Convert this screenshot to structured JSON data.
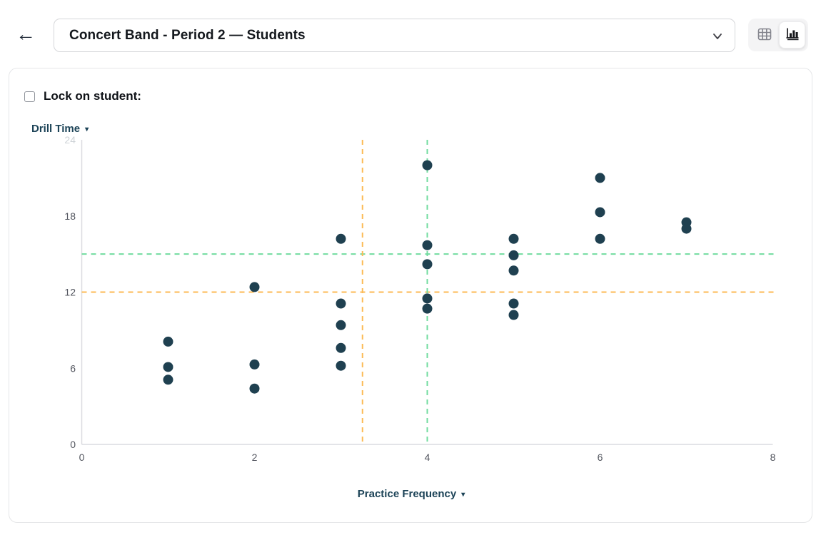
{
  "header": {
    "dataset_select": {
      "value": "Concert Band - Period 2 — Students"
    },
    "view_toggle": {
      "active": "chart"
    }
  },
  "controls": {
    "lock_label": "Lock on student:",
    "lock_checked": false
  },
  "chart_data": {
    "type": "scatter",
    "title": "",
    "xlabel": "Practice Frequency",
    "ylabel": "Drill Time",
    "xlim": [
      0,
      8
    ],
    "ylim": [
      0,
      24
    ],
    "x_ticks": [
      0,
      2,
      4,
      6,
      8
    ],
    "y_ticks": [
      0,
      6,
      12,
      18,
      24
    ],
    "faded_y_tick": 24,
    "grid": false,
    "legend": null,
    "point_color": "#1f4050",
    "points": [
      {
        "x": 1,
        "y": 8.1
      },
      {
        "x": 1,
        "y": 6.1
      },
      {
        "x": 1,
        "y": 5.1
      },
      {
        "x": 2,
        "y": 12.4
      },
      {
        "x": 2,
        "y": 6.3
      },
      {
        "x": 2,
        "y": 4.4
      },
      {
        "x": 3,
        "y": 16.2
      },
      {
        "x": 3,
        "y": 11.1
      },
      {
        "x": 3,
        "y": 9.4
      },
      {
        "x": 3,
        "y": 7.6
      },
      {
        "x": 3,
        "y": 6.2
      },
      {
        "x": 4,
        "y": 22.0
      },
      {
        "x": 4,
        "y": 15.7
      },
      {
        "x": 4,
        "y": 14.2
      },
      {
        "x": 4,
        "y": 11.5
      },
      {
        "x": 4,
        "y": 10.7
      },
      {
        "x": 5,
        "y": 16.2
      },
      {
        "x": 5,
        "y": 14.9
      },
      {
        "x": 5,
        "y": 13.7
      },
      {
        "x": 5,
        "y": 11.1
      },
      {
        "x": 5,
        "y": 10.2
      },
      {
        "x": 6,
        "y": 21.0
      },
      {
        "x": 6,
        "y": 18.3
      },
      {
        "x": 6,
        "y": 16.2
      },
      {
        "x": 7,
        "y": 17.5
      },
      {
        "x": 7,
        "y": 17.0
      }
    ],
    "reference_lines": [
      {
        "axis": "y",
        "value": 15.0,
        "color": "#71db9f"
      },
      {
        "axis": "y",
        "value": 12.0,
        "color": "#fcba55"
      },
      {
        "axis": "x",
        "value": 4.0,
        "color": "#71db9f"
      },
      {
        "axis": "x",
        "value": 3.25,
        "color": "#fcba55"
      }
    ]
  }
}
